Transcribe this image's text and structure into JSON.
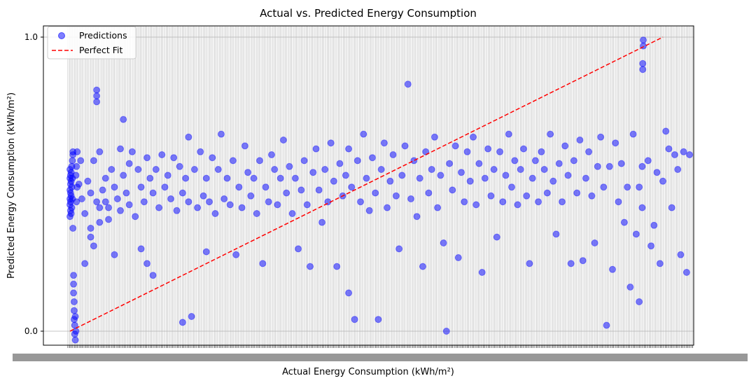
{
  "chart_data": {
    "type": "scatter",
    "title": "Actual vs. Predicted Energy Consumption",
    "xlabel": "Actual Energy Consumption (kWh/m²)",
    "ylabel": "Predicted Energy Consumption (kWh/m²)",
    "ylim": [
      -0.05,
      1.02
    ],
    "xlim": [
      -0.004,
      1.045
    ],
    "y_ticks": [
      "0.0",
      "1.0"
    ],
    "x_ticks": "dense categorical (illegible, overlapping)",
    "grid": true,
    "legend": {
      "placement": "top-left",
      "entries": [
        {
          "label": "Predictions",
          "color": "#0000ff",
          "marker": "circle"
        },
        {
          "label": "Perfect Fit",
          "color": "#ff0000",
          "line": "dashed"
        }
      ]
    },
    "series": [
      {
        "name": "Predictions",
        "color": "#0000ff",
        "alpha": 0.5
      },
      {
        "name": "Perfect Fit",
        "color": "#ff0000",
        "x": [
          0,
          1
        ],
        "y": [
          0,
          1
        ]
      }
    ],
    "points": [
      [
        0.0,
        0.43
      ],
      [
        0.0,
        0.45
      ],
      [
        0.0,
        0.48
      ],
      [
        0.0,
        0.52
      ],
      [
        0.0,
        0.55
      ],
      [
        0.0,
        0.39
      ],
      [
        0.001,
        0.41
      ],
      [
        0.001,
        0.44
      ],
      [
        0.001,
        0.47
      ],
      [
        0.001,
        0.5
      ],
      [
        0.001,
        0.53
      ],
      [
        0.002,
        0.4
      ],
      [
        0.002,
        0.46
      ],
      [
        0.002,
        0.51
      ],
      [
        0.002,
        0.54
      ],
      [
        0.003,
        0.42
      ],
      [
        0.003,
        0.49
      ],
      [
        0.003,
        0.56
      ],
      [
        0.004,
        0.45
      ],
      [
        0.004,
        0.52
      ],
      [
        0.004,
        0.58
      ],
      [
        0.005,
        0.35
      ],
      [
        0.005,
        0.6
      ],
      [
        0.005,
        0.61
      ],
      [
        0.006,
        0.19
      ],
      [
        0.006,
        0.16
      ],
      [
        0.006,
        0.13
      ],
      [
        0.007,
        0.1
      ],
      [
        0.007,
        0.07
      ],
      [
        0.007,
        0.04
      ],
      [
        0.008,
        0.02
      ],
      [
        0.008,
        -0.01
      ],
      [
        0.009,
        0.05
      ],
      [
        0.009,
        -0.03
      ],
      [
        0.01,
        0.0
      ],
      [
        0.01,
        0.53
      ],
      [
        0.011,
        0.44
      ],
      [
        0.011,
        0.56
      ],
      [
        0.012,
        0.49
      ],
      [
        0.012,
        0.61
      ],
      [
        0.015,
        0.5
      ],
      [
        0.018,
        0.58
      ],
      [
        0.02,
        0.45
      ],
      [
        0.025,
        0.23
      ],
      [
        0.025,
        0.4
      ],
      [
        0.03,
        0.51
      ],
      [
        0.035,
        0.35
      ],
      [
        0.035,
        0.47
      ],
      [
        0.035,
        0.32
      ],
      [
        0.04,
        0.29
      ],
      [
        0.04,
        0.58
      ],
      [
        0.045,
        0.82
      ],
      [
        0.045,
        0.8
      ],
      [
        0.045,
        0.78
      ],
      [
        0.045,
        0.44
      ],
      [
        0.05,
        0.61
      ],
      [
        0.05,
        0.42
      ],
      [
        0.05,
        0.37
      ],
      [
        0.055,
        0.48
      ],
      [
        0.06,
        0.44
      ],
      [
        0.06,
        0.52
      ],
      [
        0.065,
        0.42
      ],
      [
        0.065,
        0.38
      ],
      [
        0.07,
        0.55
      ],
      [
        0.075,
        0.49
      ],
      [
        0.075,
        0.26
      ],
      [
        0.08,
        0.45
      ],
      [
        0.085,
        0.62
      ],
      [
        0.085,
        0.41
      ],
      [
        0.09,
        0.53
      ],
      [
        0.09,
        0.72
      ],
      [
        0.095,
        0.47
      ],
      [
        0.1,
        0.57
      ],
      [
        0.1,
        0.43
      ],
      [
        0.105,
        0.61
      ],
      [
        0.11,
        0.39
      ],
      [
        0.115,
        0.55
      ],
      [
        0.12,
        0.49
      ],
      [
        0.12,
        0.28
      ],
      [
        0.125,
        0.44
      ],
      [
        0.13,
        0.59
      ],
      [
        0.13,
        0.23
      ],
      [
        0.135,
        0.52
      ],
      [
        0.14,
        0.47
      ],
      [
        0.14,
        0.19
      ],
      [
        0.145,
        0.55
      ],
      [
        0.15,
        0.42
      ],
      [
        0.155,
        0.6
      ],
      [
        0.16,
        0.49
      ],
      [
        0.165,
        0.53
      ],
      [
        0.17,
        0.45
      ],
      [
        0.175,
        0.59
      ],
      [
        0.18,
        0.41
      ],
      [
        0.185,
        0.56
      ],
      [
        0.19,
        0.03
      ],
      [
        0.19,
        0.47
      ],
      [
        0.195,
        0.52
      ],
      [
        0.2,
        0.44
      ],
      [
        0.2,
        0.66
      ],
      [
        0.205,
        0.05
      ],
      [
        0.21,
        0.55
      ],
      [
        0.215,
        0.42
      ],
      [
        0.22,
        0.61
      ],
      [
        0.225,
        0.46
      ],
      [
        0.23,
        0.27
      ],
      [
        0.23,
        0.52
      ],
      [
        0.235,
        0.44
      ],
      [
        0.24,
        0.59
      ],
      [
        0.245,
        0.4
      ],
      [
        0.25,
        0.55
      ],
      [
        0.255,
        0.67
      ],
      [
        0.26,
        0.45
      ],
      [
        0.265,
        0.52
      ],
      [
        0.27,
        0.43
      ],
      [
        0.275,
        0.58
      ],
      [
        0.28,
        0.26
      ],
      [
        0.285,
        0.49
      ],
      [
        0.29,
        0.42
      ],
      [
        0.295,
        0.63
      ],
      [
        0.3,
        0.54
      ],
      [
        0.305,
        0.46
      ],
      [
        0.31,
        0.52
      ],
      [
        0.315,
        0.4
      ],
      [
        0.32,
        0.58
      ],
      [
        0.325,
        0.23
      ],
      [
        0.33,
        0.49
      ],
      [
        0.335,
        0.44
      ],
      [
        0.34,
        0.6
      ],
      [
        0.345,
        0.55
      ],
      [
        0.35,
        0.43
      ],
      [
        0.355,
        0.52
      ],
      [
        0.36,
        0.65
      ],
      [
        0.365,
        0.47
      ],
      [
        0.37,
        0.56
      ],
      [
        0.375,
        0.4
      ],
      [
        0.38,
        0.52
      ],
      [
        0.385,
        0.28
      ],
      [
        0.39,
        0.48
      ],
      [
        0.395,
        0.58
      ],
      [
        0.4,
        0.43
      ],
      [
        0.405,
        0.22
      ],
      [
        0.41,
        0.54
      ],
      [
        0.415,
        0.62
      ],
      [
        0.42,
        0.48
      ],
      [
        0.425,
        0.37
      ],
      [
        0.43,
        0.55
      ],
      [
        0.435,
        0.44
      ],
      [
        0.44,
        0.64
      ],
      [
        0.445,
        0.51
      ],
      [
        0.45,
        0.22
      ],
      [
        0.455,
        0.57
      ],
      [
        0.46,
        0.46
      ],
      [
        0.465,
        0.53
      ],
      [
        0.47,
        0.13
      ],
      [
        0.47,
        0.62
      ],
      [
        0.475,
        0.49
      ],
      [
        0.48,
        0.04
      ],
      [
        0.485,
        0.58
      ],
      [
        0.49,
        0.44
      ],
      [
        0.495,
        0.67
      ],
      [
        0.5,
        0.52
      ],
      [
        0.505,
        0.41
      ],
      [
        0.51,
        0.59
      ],
      [
        0.515,
        0.47
      ],
      [
        0.52,
        0.04
      ],
      [
        0.525,
        0.55
      ],
      [
        0.53,
        0.64
      ],
      [
        0.535,
        0.42
      ],
      [
        0.54,
        0.51
      ],
      [
        0.545,
        0.6
      ],
      [
        0.55,
        0.46
      ],
      [
        0.555,
        0.28
      ],
      [
        0.56,
        0.53
      ],
      [
        0.565,
        0.63
      ],
      [
        0.57,
        0.84
      ],
      [
        0.575,
        0.45
      ],
      [
        0.58,
        0.58
      ],
      [
        0.585,
        0.39
      ],
      [
        0.59,
        0.52
      ],
      [
        0.595,
        0.22
      ],
      [
        0.6,
        0.61
      ],
      [
        0.605,
        0.47
      ],
      [
        0.61,
        0.55
      ],
      [
        0.615,
        0.66
      ],
      [
        0.62,
        0.42
      ],
      [
        0.625,
        0.53
      ],
      [
        0.63,
        0.3
      ],
      [
        0.635,
        0.0
      ],
      [
        0.64,
        0.57
      ],
      [
        0.645,
        0.48
      ],
      [
        0.65,
        0.63
      ],
      [
        0.655,
        0.25
      ],
      [
        0.66,
        0.54
      ],
      [
        0.665,
        0.44
      ],
      [
        0.67,
        0.61
      ],
      [
        0.675,
        0.51
      ],
      [
        0.68,
        0.66
      ],
      [
        0.685,
        0.43
      ],
      [
        0.69,
        0.57
      ],
      [
        0.695,
        0.2
      ],
      [
        0.7,
        0.52
      ],
      [
        0.705,
        0.62
      ],
      [
        0.71,
        0.46
      ],
      [
        0.715,
        0.55
      ],
      [
        0.72,
        0.32
      ],
      [
        0.725,
        0.61
      ],
      [
        0.73,
        0.44
      ],
      [
        0.735,
        0.53
      ],
      [
        0.74,
        0.67
      ],
      [
        0.745,
        0.49
      ],
      [
        0.75,
        0.58
      ],
      [
        0.755,
        0.43
      ],
      [
        0.76,
        0.55
      ],
      [
        0.765,
        0.62
      ],
      [
        0.77,
        0.46
      ],
      [
        0.775,
        0.23
      ],
      [
        0.78,
        0.52
      ],
      [
        0.785,
        0.58
      ],
      [
        0.79,
        0.44
      ],
      [
        0.795,
        0.61
      ],
      [
        0.8,
        0.55
      ],
      [
        0.805,
        0.47
      ],
      [
        0.81,
        0.67
      ],
      [
        0.815,
        0.51
      ],
      [
        0.82,
        0.33
      ],
      [
        0.825,
        0.57
      ],
      [
        0.83,
        0.44
      ],
      [
        0.835,
        0.63
      ],
      [
        0.84,
        0.53
      ],
      [
        0.845,
        0.23
      ],
      [
        0.85,
        0.58
      ],
      [
        0.855,
        0.47
      ],
      [
        0.86,
        0.65
      ],
      [
        0.865,
        0.24
      ],
      [
        0.87,
        0.52
      ],
      [
        0.875,
        0.61
      ],
      [
        0.88,
        0.46
      ],
      [
        0.885,
        0.3
      ],
      [
        0.89,
        0.56
      ],
      [
        0.895,
        0.66
      ],
      [
        0.9,
        0.49
      ],
      [
        0.905,
        0.02
      ],
      [
        0.91,
        0.56
      ],
      [
        0.915,
        0.21
      ],
      [
        0.92,
        0.64
      ],
      [
        0.925,
        0.44
      ],
      [
        0.93,
        0.57
      ],
      [
        0.935,
        0.37
      ],
      [
        0.94,
        0.49
      ],
      [
        0.945,
        0.15
      ],
      [
        0.95,
        0.67
      ],
      [
        0.955,
        0.33
      ],
      [
        0.96,
        0.1
      ],
      [
        0.96,
        0.49
      ],
      [
        0.965,
        0.56
      ],
      [
        0.965,
        0.42
      ],
      [
        0.966,
        0.89
      ],
      [
        0.966,
        0.91
      ],
      [
        0.967,
        0.97
      ],
      [
        0.967,
        0.99
      ],
      [
        0.975,
        0.58
      ],
      [
        0.98,
        0.29
      ],
      [
        0.985,
        0.36
      ],
      [
        0.99,
        0.54
      ],
      [
        0.995,
        0.23
      ],
      [
        1.0,
        0.51
      ],
      [
        1.005,
        0.68
      ],
      [
        1.01,
        0.62
      ],
      [
        1.015,
        0.42
      ],
      [
        1.02,
        0.6
      ],
      [
        1.025,
        0.55
      ],
      [
        1.03,
        0.26
      ],
      [
        1.035,
        0.61
      ],
      [
        1.04,
        0.2
      ],
      [
        1.045,
        0.6
      ]
    ]
  }
}
